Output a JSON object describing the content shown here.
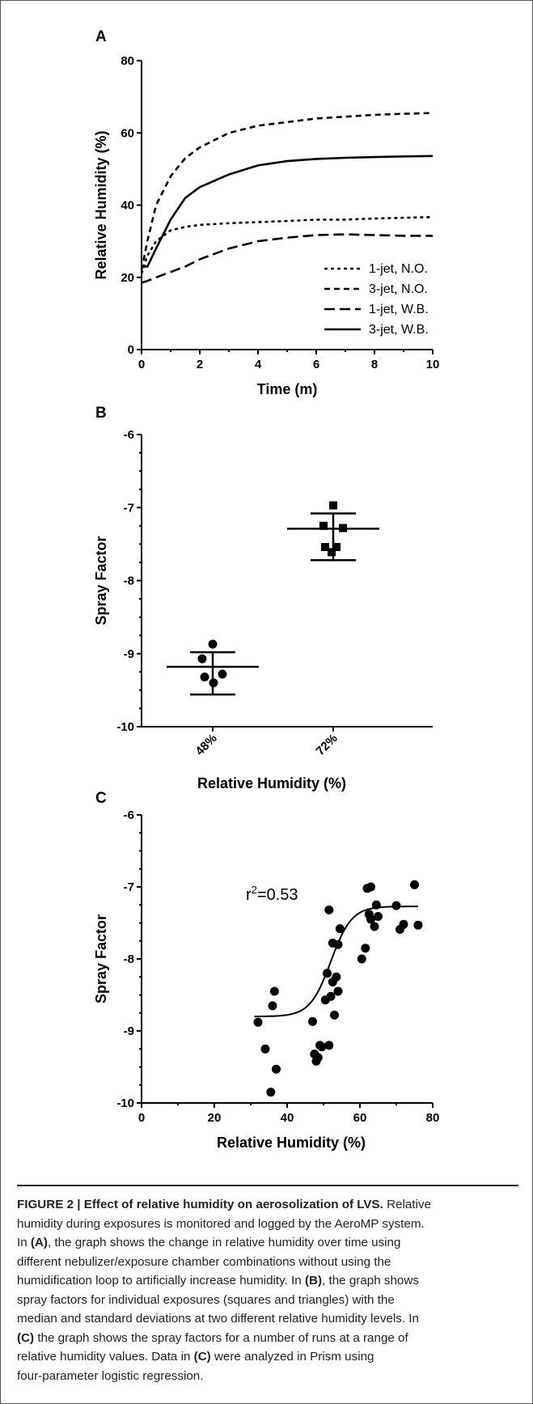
{
  "figure": {
    "panels": [
      {
        "label": "A"
      },
      {
        "label": "B"
      },
      {
        "label": "C"
      }
    ]
  },
  "chart_data": [
    {
      "panel": "A",
      "type": "line",
      "xlabel": "Time (m)",
      "ylabel": "Relative Humidity (%)",
      "xlim": [
        0,
        10
      ],
      "ylim": [
        0,
        80
      ],
      "xticks": [
        "0",
        "2",
        "4",
        "6",
        "8",
        "10"
      ],
      "yticks": [
        "0",
        "20",
        "40",
        "60",
        "80"
      ],
      "grid": false,
      "legend_position": "bottom-right",
      "series": [
        {
          "name": "1-jet, N.O.",
          "style": "dotted",
          "x": [
            0,
            0.2,
            0.5,
            1,
            1.5,
            2,
            3,
            4,
            5,
            6,
            7,
            8,
            9,
            10
          ],
          "y": [
            21,
            26,
            30,
            33,
            34,
            34.5,
            35,
            35.3,
            35.6,
            36,
            36,
            36.3,
            36.5,
            36.7
          ]
        },
        {
          "name": "3-jet, N.O.",
          "style": "short-dash",
          "x": [
            0,
            0.2,
            0.5,
            1,
            1.5,
            2,
            3,
            4,
            5,
            6,
            7,
            8,
            9,
            10
          ],
          "y": [
            22,
            30,
            40,
            48,
            53,
            56,
            60,
            62,
            63,
            64,
            64.5,
            65,
            65.3,
            65.5
          ]
        },
        {
          "name": "1-jet, W.B.",
          "style": "long-dash",
          "x": [
            0,
            0.2,
            0.5,
            1,
            1.5,
            2,
            3,
            4,
            5,
            6,
            7,
            8,
            9,
            10
          ],
          "y": [
            18.5,
            19,
            20,
            21.5,
            23,
            25,
            28,
            30,
            31,
            31.7,
            31.9,
            31.7,
            31.5,
            31.5
          ]
        },
        {
          "name": "3-jet, W.B.",
          "style": "solid",
          "x": [
            0,
            0.2,
            0.5,
            1,
            1.5,
            2,
            3,
            4,
            5,
            6,
            7,
            8,
            9,
            10
          ],
          "y": [
            23,
            23,
            28,
            36,
            42,
            45,
            48.5,
            51,
            52.2,
            52.8,
            53.1,
            53.3,
            53.5,
            53.6
          ]
        }
      ]
    },
    {
      "panel": "B",
      "type": "scatter",
      "xlabel": "Relative Humidity (%)",
      "ylabel": "Spray Factor",
      "categories": [
        "48%",
        "72%"
      ],
      "ylim": [
        -10,
        -6
      ],
      "yticks": [
        "-6",
        "-7",
        "-8",
        "-9",
        "-10"
      ],
      "grid": false,
      "series": [
        {
          "category": "48%",
          "marker": "circle",
          "values": [
            -8.87,
            -9.07,
            -9.28,
            -9.32,
            -9.4
          ],
          "median": -9.18,
          "sd_upper": -8.98,
          "sd_lower": -9.56
        },
        {
          "category": "72%",
          "marker": "square",
          "values": [
            -6.97,
            -7.25,
            -7.28,
            -7.54,
            -7.54,
            -7.61
          ],
          "median": -7.29,
          "sd_upper": -7.08,
          "sd_lower": -7.72
        }
      ]
    },
    {
      "panel": "C",
      "type": "scatter",
      "xlabel": "Relative Humidity (%)",
      "ylabel": "Spray Factor",
      "xlim": [
        0,
        80
      ],
      "ylim": [
        -10,
        -6
      ],
      "xticks": [
        "0",
        "20",
        "40",
        "60",
        "80"
      ],
      "yticks": [
        "-6",
        "-7",
        "-8",
        "-9",
        "-10"
      ],
      "grid": false,
      "annotation": {
        "text": "r",
        "sup": "2",
        "rest": "=0.53"
      },
      "points": {
        "x": [
          32,
          34,
          35.5,
          36,
          36.5,
          37,
          47,
          47.5,
          48,
          48.5,
          49,
          49.5,
          50.5,
          51,
          51.5,
          51.5,
          52,
          52.5,
          52.5,
          53,
          53.5,
          54,
          54,
          54.5,
          60.5,
          61.5,
          62,
          62.5,
          63,
          63,
          64,
          64.5,
          65,
          70,
          71,
          72,
          75,
          76
        ],
        "y": [
          -8.88,
          -9.25,
          -9.85,
          -8.65,
          -8.45,
          -9.53,
          -8.87,
          -9.32,
          -9.42,
          -9.37,
          -9.2,
          -9.22,
          -8.57,
          -8.2,
          -9.2,
          -7.32,
          -8.52,
          -7.78,
          -8.32,
          -8.78,
          -8.25,
          -8.45,
          -7.8,
          -7.58,
          -8.0,
          -7.85,
          -7.02,
          -7.38,
          -7.0,
          -7.45,
          -7.55,
          -7.25,
          -7.41,
          -7.26,
          -7.59,
          -7.52,
          -6.97,
          -7.53
        ]
      },
      "fit": {
        "model": "four-parameter logistic",
        "bottom": -8.8,
        "top": -7.27,
        "ec50": 52,
        "hill": 0.35
      }
    }
  ],
  "caption": {
    "lines": [
      [
        {
          "t": "FIGURE 2 | Effect of relative humidity on aerosolization of LVS.",
          "b": true
        },
        {
          "t": " Relative",
          "b": false
        }
      ],
      [
        {
          "t": "humidity during exposures is monitored and logged by the AeroMP system.",
          "b": false
        }
      ],
      [
        {
          "t": "In ",
          "b": false
        },
        {
          "t": "(A)",
          "b": true
        },
        {
          "t": ", the graph shows the change in relative humidity over time using",
          "b": false
        }
      ],
      [
        {
          "t": "different nebulizer/exposure chamber combinations without using the",
          "b": false
        }
      ],
      [
        {
          "t": "humidification loop to artificially increase humidity. In ",
          "b": false
        },
        {
          "t": "(B)",
          "b": true
        },
        {
          "t": ", the graph shows",
          "b": false
        }
      ],
      [
        {
          "t": "spray factors for individual exposures (squares and triangles) with the",
          "b": false
        }
      ],
      [
        {
          "t": "median and standard deviations at two different relative humidity levels. In",
          "b": false
        }
      ],
      [
        {
          "t": "(C)",
          "b": true
        },
        {
          "t": " the graph shows the spray factors for a number of runs at a range of",
          "b": false
        }
      ],
      [
        {
          "t": "relative humidity values. Data in ",
          "b": false
        },
        {
          "t": "(C)",
          "b": true
        },
        {
          "t": " were analyzed in Prism using",
          "b": false
        }
      ],
      [
        {
          "t": "four-parameter logistic regression.",
          "b": false
        }
      ]
    ]
  }
}
